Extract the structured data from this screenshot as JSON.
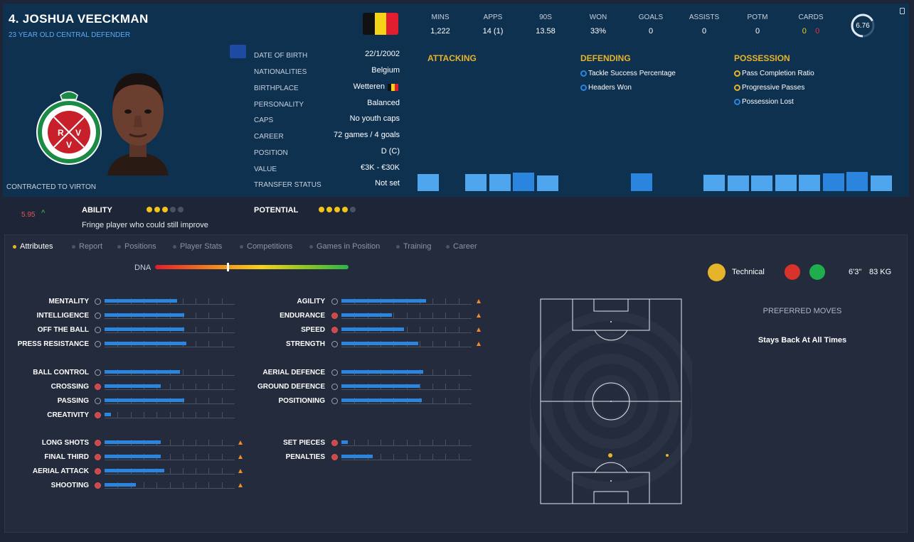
{
  "player": {
    "name": "4. JOSHUA VEECKMAN",
    "subtitle": "23 YEAR OLD  CENTRAL DEFENDER",
    "contract": "CONTRACTED TO VIRTON",
    "club_crest": {
      "icon": "club-crest-icon",
      "text": "DEPUIS 1922 · ROYAL EXCELSIOR VIRTON · R E V"
    },
    "nationality_flag": "belgium-flag-icon"
  },
  "info": [
    {
      "label": "DATE OF BIRTH",
      "value": "22/1/2002"
    },
    {
      "label": "NATIONALITIES",
      "value": "Belgium"
    },
    {
      "label": "BIRTHPLACE",
      "value": "Wetteren"
    },
    {
      "label": "PERSONALITY",
      "value": "Balanced"
    },
    {
      "label": "CAPS",
      "value": "No youth caps"
    },
    {
      "label": "CAREER",
      "value": "72 games /    4 goals"
    },
    {
      "label": "POSITION",
      "value": "D (C)"
    },
    {
      "label": "VALUE",
      "value": "€3K - €30K"
    },
    {
      "label": "TRANSFER STATUS",
      "value": "Not set"
    }
  ],
  "stats": [
    {
      "label": "MINS",
      "value": "1,222"
    },
    {
      "label": "APPS",
      "value": "14 (1)"
    },
    {
      "label": "90S",
      "value": "13.58"
    },
    {
      "label": "WON",
      "value": "33%"
    },
    {
      "label": "GOALS",
      "value": "0"
    },
    {
      "label": "ASSISTS",
      "value": "0"
    },
    {
      "label": "POTM",
      "value": "0"
    }
  ],
  "cards": {
    "label": "CARDS",
    "yellow": "0",
    "red": "0"
  },
  "rating": {
    "value": "6.76",
    "fraction": 0.676
  },
  "sections": {
    "attacking": {
      "title": "ATTACKING",
      "items": []
    },
    "defending": {
      "title": "DEFENDING",
      "items": [
        "Tackle Success Percentage",
        "Headers Won"
      ]
    },
    "possession": {
      "title": "POSSESSION",
      "items": [
        "Pass Completion Ratio",
        "Progressive Passes",
        "Possession Lost"
      ]
    }
  },
  "percentile_bars": {
    "attacking": [
      0.78,
      0,
      0.79,
      0.79,
      0.85,
      0.71
    ],
    "defending": [
      0,
      0,
      0.82,
      0
    ],
    "possession": [
      0.75,
      0.72,
      0.72,
      0.73,
      0.74,
      0.82,
      0.86,
      0.7
    ]
  },
  "ability": {
    "value": "5.95",
    "label": "ABILITY",
    "stars": 3,
    "max": 5,
    "desc": "Fringe player who could still improve"
  },
  "potential": {
    "label": "POTENTIAL",
    "stars": 4,
    "max": 5
  },
  "tabs": [
    "Attributes",
    "Report",
    "Positions",
    "Player Stats",
    "Competitions",
    "Games in Position",
    "Training",
    "Career"
  ],
  "active_tab": "Attributes",
  "dna": {
    "label": "DNA",
    "level": 0.375
  },
  "attributes": {
    "col1": [
      [
        {
          "name": "MENTALITY",
          "value": 0.56,
          "icon": "neutral"
        },
        {
          "name": "INTELLIGENCE",
          "value": 0.61,
          "icon": "neutral"
        },
        {
          "name": "OFF THE BALL",
          "value": 0.61,
          "icon": "neutral"
        },
        {
          "name": "PRESS RESISTANCE",
          "value": 0.63,
          "icon": "neutral"
        }
      ],
      [
        {
          "name": "BALL CONTROL",
          "value": 0.58,
          "icon": "neutral"
        },
        {
          "name": "CROSSING",
          "value": 0.43,
          "icon": "red"
        },
        {
          "name": "PASSING",
          "value": 0.61,
          "icon": "neutral"
        },
        {
          "name": "CREATIVITY",
          "value": 0.05,
          "icon": "red"
        }
      ],
      [
        {
          "name": "LONG SHOTS",
          "value": 0.43,
          "icon": "red",
          "arrow": true
        },
        {
          "name": "FINAL THIRD",
          "value": 0.43,
          "icon": "red",
          "arrow": true
        },
        {
          "name": "AERIAL ATTACK",
          "value": 0.46,
          "icon": "red",
          "arrow": true
        },
        {
          "name": "SHOOTING",
          "value": 0.24,
          "icon": "red",
          "arrow": true
        }
      ]
    ],
    "col2": [
      [
        {
          "name": "AGILITY",
          "value": 0.65,
          "icon": "neutral",
          "arrow": true
        },
        {
          "name": "ENDURANCE",
          "value": 0.39,
          "icon": "red",
          "arrow": true
        },
        {
          "name": "SPEED",
          "value": 0.48,
          "icon": "red",
          "arrow": true
        },
        {
          "name": "STRENGTH",
          "value": 0.59,
          "icon": "neutral",
          "arrow": true
        }
      ],
      [
        {
          "name": "AERIAL DEFENCE",
          "value": 0.63,
          "icon": "neutral"
        },
        {
          "name": "GROUND DEFENCE",
          "value": 0.6,
          "icon": "neutral"
        },
        {
          "name": "POSITIONING",
          "value": 0.62,
          "icon": "neutral"
        }
      ],
      [
        {
          "name": "SET PIECES",
          "value": 0.05,
          "icon": "red"
        },
        {
          "name": "PENALTIES",
          "value": 0.24,
          "icon": "red"
        }
      ]
    ]
  },
  "foot": {
    "label": "Technical",
    "icon": "boot-icon"
  },
  "height": "6'3\"",
  "weight": "83 KG",
  "preferred_moves": {
    "title": "PREFERRED MOVES",
    "items": [
      "Stays Back At All Times"
    ]
  }
}
